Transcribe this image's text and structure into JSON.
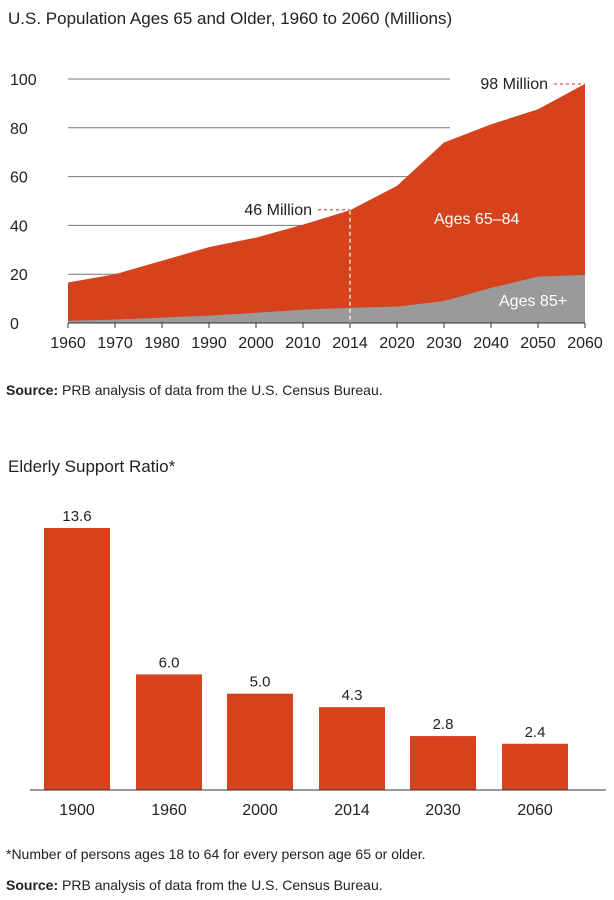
{
  "colors": {
    "accent": "#d5421c",
    "gray": "#9a9a9a",
    "grid": "#777777",
    "annot": "#e05a40"
  },
  "chart_data": [
    {
      "type": "area",
      "title": "U.S. Population Ages 65 and Older, 1960 to 2060 (Millions)",
      "x": [
        "1960",
        "1970",
        "1980",
        "1990",
        "2000",
        "2010",
        "2014",
        "2020",
        "2030",
        "2040",
        "2050",
        "2060"
      ],
      "yticks": [
        0,
        20,
        40,
        60,
        80,
        100
      ],
      "ylim": [
        0,
        100
      ],
      "grid": true,
      "series": [
        {
          "name": "Ages 85+",
          "values": [
            0.9,
            1.4,
            2.2,
            3.0,
            4.2,
            5.5,
            6.2,
            6.7,
            9.0,
            14.4,
            19.0,
            19.7
          ]
        },
        {
          "name": "Ages 65–84",
          "values": [
            15.7,
            18.6,
            23.3,
            28.1,
            30.8,
            34.8,
            40.0,
            49.5,
            65.0,
            67.0,
            68.6,
            78.3
          ]
        }
      ],
      "totals": [
        16.6,
        20.0,
        25.5,
        31.1,
        35.0,
        40.3,
        46.2,
        56.2,
        74.0,
        81.4,
        87.6,
        98.0
      ],
      "annotations": [
        {
          "x": "2014",
          "label": "46 Million",
          "value": 46
        },
        {
          "x": "2060",
          "label": "98 Million",
          "value": 98
        }
      ],
      "source_prefix": "Source:",
      "source_text": " PRB analysis of data from the U.S. Census Bureau."
    },
    {
      "type": "bar",
      "title": "Elderly Support Ratio*",
      "categories": [
        "1900",
        "1960",
        "2000",
        "2014",
        "2030",
        "2060"
      ],
      "values": [
        13.6,
        6.0,
        5.0,
        4.3,
        2.8,
        2.4
      ],
      "value_labels": [
        "13.6",
        "6.0",
        "5.0",
        "4.3",
        "2.8",
        "2.4"
      ],
      "ylim": [
        0,
        13.6
      ],
      "footnote": "*Number of persons ages 18 to 64 for every person age 65 or older.",
      "source_prefix": "Source:",
      "source_text": " PRB analysis of data from the U.S. Census Bureau."
    }
  ]
}
